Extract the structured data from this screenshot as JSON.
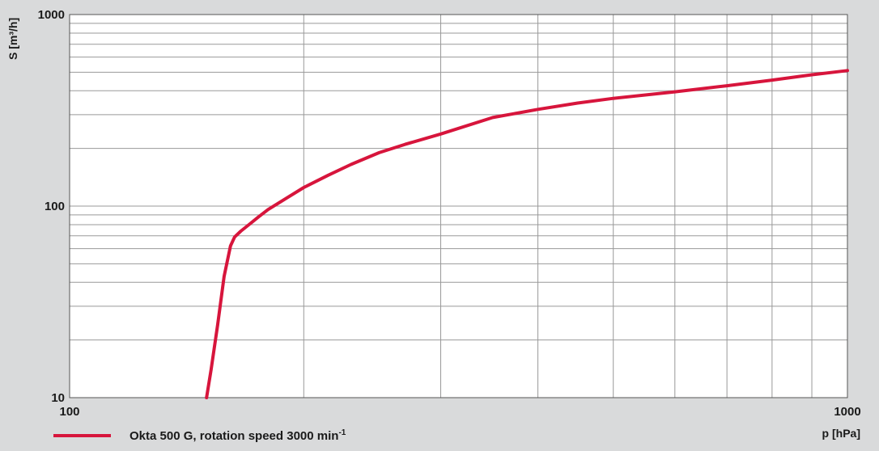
{
  "chart_data": {
    "type": "line",
    "title": "",
    "xlabel": "p [hPa]",
    "ylabel": "S [m³/h]",
    "x_scale": "log",
    "y_scale": "log",
    "xlim": [
      100,
      1000
    ],
    "ylim": [
      10,
      1000
    ],
    "x_ticks": [
      "100",
      "1000"
    ],
    "y_ticks": [
      "10",
      "100",
      "1000"
    ],
    "grid": true,
    "legend_position": "bottom-left",
    "colors": {
      "series": "#d7153c",
      "background": "#ffffff",
      "grid": "#999999",
      "page": "#d9dadb"
    },
    "series": [
      {
        "name": "Okta 500 G, rotation speed 3000 min-1",
        "x": [
          150,
          152,
          155,
          158,
          161,
          163,
          166,
          170,
          175,
          180,
          190,
          200,
          215,
          230,
          250,
          270,
          300,
          350,
          400,
          450,
          500,
          600,
          700,
          800,
          900,
          1000
        ],
        "y": [
          10,
          14,
          24,
          43,
          62,
          69,
          74,
          80,
          88,
          96,
          110,
          125,
          145,
          165,
          190,
          210,
          238,
          290,
          320,
          345,
          365,
          395,
          425,
          455,
          485,
          510
        ]
      }
    ]
  }
}
